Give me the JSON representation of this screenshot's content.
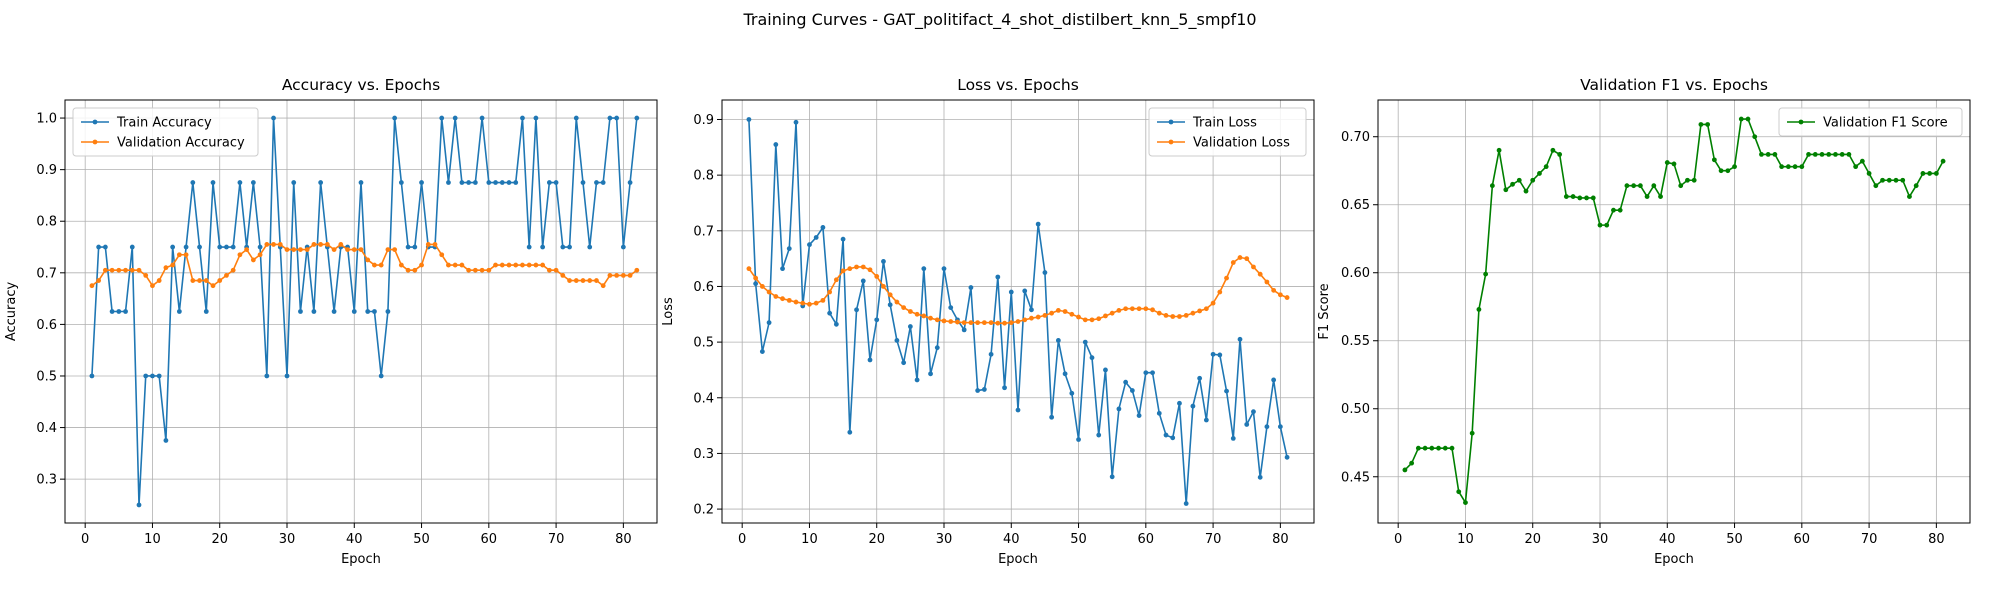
{
  "figure_title": "Training Curves - GAT_politifact_4_shot_distilbert_knn_5_smpf10",
  "chart_data": [
    {
      "type": "line",
      "title": "Accuracy vs. Epochs",
      "xlabel": "Epoch",
      "ylabel": "Accuracy",
      "xlim": [
        -3,
        85
      ],
      "ylim": [
        0.215,
        1.035
      ],
      "xticks": [
        0,
        10,
        20,
        30,
        40,
        50,
        60,
        70,
        80
      ],
      "yticks": [
        0.3,
        0.4,
        0.5,
        0.6,
        0.7,
        0.8,
        0.9,
        1.0
      ],
      "ytick_labels": [
        "0.3",
        "0.4",
        "0.5",
        "0.6",
        "0.7",
        "0.8",
        "0.9",
        "1.0"
      ],
      "grid": true,
      "legend_position": "upper-left",
      "x_start": 1,
      "series": [
        {
          "name": "Train Accuracy",
          "color": "#1f77b4",
          "values": [
            0.5,
            0.75,
            0.75,
            0.625,
            0.625,
            0.625,
            0.75,
            0.25,
            0.5,
            0.5,
            0.5,
            0.375,
            0.75,
            0.625,
            0.75,
            0.875,
            0.75,
            0.625,
            0.875,
            0.75,
            0.75,
            0.75,
            0.875,
            0.75,
            0.875,
            0.75,
            0.5,
            1.0,
            0.75,
            0.5,
            0.875,
            0.625,
            0.75,
            0.625,
            0.875,
            0.75,
            0.625,
            0.75,
            0.75,
            0.625,
            0.875,
            0.625,
            0.625,
            0.5,
            0.625,
            1.0,
            0.875,
            0.75,
            0.75,
            0.875,
            0.75,
            0.75,
            1.0,
            0.875,
            1.0,
            0.875,
            0.875,
            0.875,
            1.0,
            0.875,
            0.875,
            0.875,
            0.875,
            0.875,
            1.0,
            0.75,
            1.0,
            0.75,
            0.875,
            0.875,
            0.75,
            0.75,
            1.0,
            0.875,
            0.75,
            0.875,
            0.875,
            1.0,
            1.0,
            0.75,
            0.875,
            1.0
          ]
        },
        {
          "name": "Validation Accuracy",
          "color": "#ff7f0e",
          "values": [
            0.675,
            0.685,
            0.705,
            0.705,
            0.705,
            0.705,
            0.705,
            0.705,
            0.695,
            0.675,
            0.685,
            0.71,
            0.715,
            0.735,
            0.735,
            0.685,
            0.685,
            0.685,
            0.675,
            0.685,
            0.695,
            0.705,
            0.735,
            0.745,
            0.725,
            0.735,
            0.755,
            0.755,
            0.755,
            0.745,
            0.745,
            0.745,
            0.745,
            0.755,
            0.755,
            0.755,
            0.745,
            0.755,
            0.745,
            0.745,
            0.745,
            0.725,
            0.715,
            0.715,
            0.745,
            0.745,
            0.715,
            0.705,
            0.705,
            0.715,
            0.755,
            0.755,
            0.735,
            0.715,
            0.715,
            0.715,
            0.705,
            0.705,
            0.705,
            0.705,
            0.715,
            0.715,
            0.715,
            0.715,
            0.715,
            0.715,
            0.715,
            0.715,
            0.705,
            0.705,
            0.695,
            0.685,
            0.685,
            0.685,
            0.685,
            0.685,
            0.675,
            0.695,
            0.695,
            0.695,
            0.695,
            0.705
          ]
        }
      ]
    },
    {
      "type": "line",
      "title": "Loss vs. Epochs",
      "xlabel": "Epoch",
      "ylabel": "Loss",
      "xlim": [
        -3,
        85
      ],
      "ylim": [
        0.175,
        0.935
      ],
      "xticks": [
        0,
        10,
        20,
        30,
        40,
        50,
        60,
        70,
        80
      ],
      "yticks": [
        0.2,
        0.3,
        0.4,
        0.5,
        0.6,
        0.7,
        0.8,
        0.9
      ],
      "ytick_labels": [
        "0.2",
        "0.3",
        "0.4",
        "0.5",
        "0.6",
        "0.7",
        "0.8",
        "0.9"
      ],
      "grid": true,
      "legend_position": "upper-right",
      "x_start": 1,
      "series": [
        {
          "name": "Train Loss",
          "color": "#1f77b4",
          "values": [
            0.9,
            0.605,
            0.483,
            0.535,
            0.855,
            0.632,
            0.668,
            0.895,
            0.565,
            0.675,
            0.688,
            0.706,
            0.552,
            0.532,
            0.685,
            0.338,
            0.558,
            0.61,
            0.468,
            0.54,
            0.645,
            0.567,
            0.503,
            0.463,
            0.528,
            0.432,
            0.632,
            0.443,
            0.49,
            0.632,
            0.562,
            0.54,
            0.522,
            0.598,
            0.413,
            0.415,
            0.478,
            0.617,
            0.418,
            0.59,
            0.378,
            0.592,
            0.558,
            0.712,
            0.625,
            0.365,
            0.503,
            0.443,
            0.408,
            0.325,
            0.5,
            0.472,
            0.333,
            0.45,
            0.258,
            0.38,
            0.428,
            0.413,
            0.368,
            0.445,
            0.445,
            0.372,
            0.333,
            0.328,
            0.39,
            0.21,
            0.385,
            0.435,
            0.36,
            0.478,
            0.477,
            0.412,
            0.327,
            0.505,
            0.352,
            0.375,
            0.257,
            0.348,
            0.432,
            0.348,
            0.293
          ]
        },
        {
          "name": "Validation Loss",
          "color": "#ff7f0e",
          "values": [
            0.632,
            0.615,
            0.6,
            0.59,
            0.582,
            0.578,
            0.575,
            0.572,
            0.57,
            0.568,
            0.57,
            0.575,
            0.59,
            0.612,
            0.628,
            0.632,
            0.635,
            0.635,
            0.63,
            0.618,
            0.6,
            0.585,
            0.572,
            0.562,
            0.555,
            0.55,
            0.547,
            0.543,
            0.54,
            0.538,
            0.537,
            0.536,
            0.535,
            0.535,
            0.535,
            0.535,
            0.535,
            0.534,
            0.534,
            0.535,
            0.537,
            0.54,
            0.543,
            0.545,
            0.548,
            0.552,
            0.557,
            0.555,
            0.55,
            0.545,
            0.54,
            0.54,
            0.542,
            0.547,
            0.552,
            0.557,
            0.56,
            0.56,
            0.56,
            0.56,
            0.558,
            0.552,
            0.548,
            0.546,
            0.546,
            0.548,
            0.552,
            0.556,
            0.56,
            0.57,
            0.59,
            0.615,
            0.643,
            0.652,
            0.65,
            0.635,
            0.622,
            0.608,
            0.593,
            0.585,
            0.58
          ]
        }
      ]
    },
    {
      "type": "line",
      "title": "Validation F1 vs. Epochs",
      "xlabel": "Epoch",
      "ylabel": "F1 Score",
      "xlim": [
        -3,
        85
      ],
      "ylim": [
        0.416,
        0.727
      ],
      "xticks": [
        0,
        10,
        20,
        30,
        40,
        50,
        60,
        70,
        80
      ],
      "yticks": [
        0.45,
        0.5,
        0.55,
        0.6,
        0.65,
        0.7
      ],
      "ytick_labels": [
        "0.45",
        "0.50",
        "0.55",
        "0.60",
        "0.65",
        "0.70"
      ],
      "grid": true,
      "legend_position": "upper-right",
      "x_start": 1,
      "series": [
        {
          "name": "Validation F1 Score",
          "color": "#008000",
          "values": [
            0.455,
            0.46,
            0.471,
            0.471,
            0.471,
            0.471,
            0.471,
            0.471,
            0.439,
            0.431,
            0.482,
            0.573,
            0.599,
            0.664,
            0.69,
            0.661,
            0.665,
            0.668,
            0.66,
            0.668,
            0.673,
            0.678,
            0.69,
            0.687,
            0.656,
            0.656,
            0.655,
            0.655,
            0.655,
            0.635,
            0.635,
            0.646,
            0.646,
            0.664,
            0.664,
            0.664,
            0.656,
            0.664,
            0.656,
            0.681,
            0.68,
            0.664,
            0.668,
            0.668,
            0.709,
            0.709,
            0.683,
            0.675,
            0.675,
            0.678,
            0.713,
            0.713,
            0.7,
            0.687,
            0.687,
            0.687,
            0.678,
            0.678,
            0.678,
            0.678,
            0.687,
            0.687,
            0.687,
            0.687,
            0.687,
            0.687,
            0.687,
            0.678,
            0.682,
            0.673,
            0.664,
            0.668,
            0.668,
            0.668,
            0.668,
            0.656,
            0.664,
            0.673,
            0.673,
            0.673,
            0.682
          ]
        }
      ]
    }
  ]
}
